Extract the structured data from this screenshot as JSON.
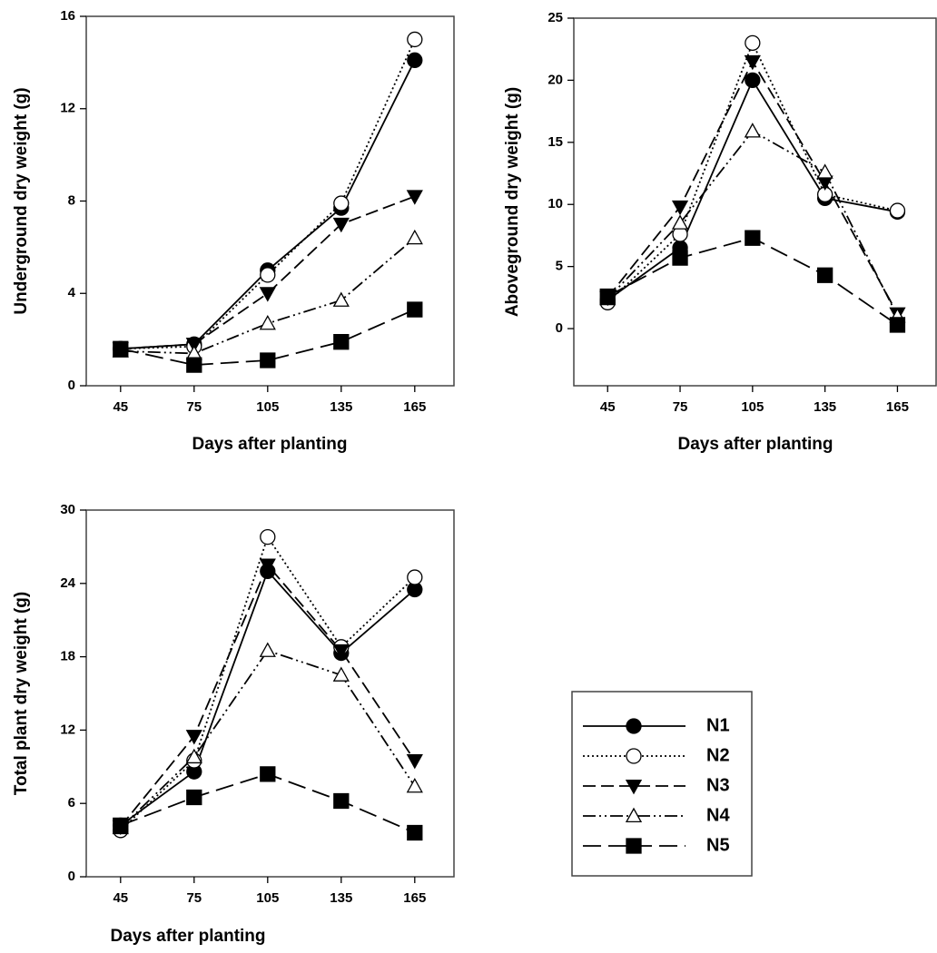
{
  "chart_data": [
    {
      "type": "line",
      "xlabel": "Days after planting",
      "ylabel": "Underground dry weight (g)",
      "x": [
        45,
        75,
        105,
        135,
        165
      ],
      "xlim": [
        31,
        181
      ],
      "xticks": [
        45,
        75,
        105,
        135,
        165
      ],
      "ylim": [
        0,
        16
      ],
      "yticks": [
        0,
        4,
        8,
        12,
        16
      ],
      "series": [
        {
          "name": "N1",
          "color": "#000000",
          "marker": "filled-circle",
          "dash": "solid",
          "values": [
            1.6,
            1.8,
            5.0,
            7.7,
            14.1
          ]
        },
        {
          "name": "N2",
          "color": "#000000",
          "marker": "open-circle",
          "dash": "dotted",
          "values": [
            1.6,
            1.7,
            4.8,
            7.9,
            15.0
          ]
        },
        {
          "name": "N3",
          "color": "#000000",
          "marker": "filled-triangle-down",
          "dash": "dashed",
          "values": [
            1.6,
            1.8,
            4.0,
            7.0,
            8.2
          ]
        },
        {
          "name": "N4",
          "color": "#000000",
          "marker": "open-triangle-up",
          "dash": "dash-dot-dot",
          "values": [
            1.5,
            1.4,
            2.7,
            3.7,
            6.4
          ]
        },
        {
          "name": "N5",
          "color": "#000000",
          "marker": "filled-square",
          "dash": "long-dash",
          "values": [
            1.6,
            0.9,
            1.1,
            1.9,
            3.3
          ]
        }
      ]
    },
    {
      "type": "line",
      "xlabel": "Days after planting",
      "ylabel": "Aboveground dry weight (g)",
      "x": [
        45,
        75,
        105,
        135,
        165
      ],
      "xlim": [
        31,
        181
      ],
      "xticks": [
        45,
        75,
        105,
        135,
        165
      ],
      "ylim": [
        -4.6,
        25
      ],
      "yticks": [
        0,
        5,
        10,
        15,
        20,
        25
      ],
      "series": [
        {
          "name": "N1",
          "color": "#000000",
          "marker": "filled-circle",
          "dash": "solid",
          "values": [
            2.3,
            6.5,
            20.0,
            10.5,
            9.4
          ]
        },
        {
          "name": "N2",
          "color": "#000000",
          "marker": "open-circle",
          "dash": "dotted",
          "values": [
            2.1,
            7.6,
            23.0,
            10.8,
            9.5
          ]
        },
        {
          "name": "N3",
          "color": "#000000",
          "marker": "filled-triangle-down",
          "dash": "dashed",
          "values": [
            2.5,
            9.8,
            21.5,
            11.8,
            1.2
          ]
        },
        {
          "name": "N4",
          "color": "#000000",
          "marker": "open-triangle-up",
          "dash": "dash-dot-dot",
          "values": [
            2.4,
            8.5,
            15.9,
            12.6,
            1.0
          ]
        },
        {
          "name": "N5",
          "color": "#000000",
          "marker": "filled-square",
          "dash": "long-dash",
          "values": [
            2.6,
            5.7,
            7.3,
            4.3,
            0.3
          ]
        }
      ]
    },
    {
      "type": "line",
      "xlabel": "Days after planting",
      "ylabel": "Total plant dry weight (g)",
      "x": [
        45,
        75,
        105,
        135,
        165
      ],
      "xlim": [
        31,
        181
      ],
      "xticks": [
        45,
        75,
        105,
        135,
        165
      ],
      "ylim": [
        0,
        30
      ],
      "yticks": [
        0,
        6,
        12,
        18,
        24,
        30
      ],
      "legend": "outside-right",
      "series": [
        {
          "name": "N1",
          "color": "#000000",
          "marker": "filled-circle",
          "dash": "solid",
          "values": [
            4.2,
            8.6,
            25.0,
            18.3,
            23.5
          ]
        },
        {
          "name": "N2",
          "color": "#000000",
          "marker": "open-circle",
          "dash": "dotted",
          "values": [
            3.8,
            9.5,
            27.8,
            18.8,
            24.5
          ]
        },
        {
          "name": "N3",
          "color": "#000000",
          "marker": "filled-triangle-down",
          "dash": "dashed",
          "values": [
            4.1,
            11.5,
            25.5,
            18.5,
            9.5
          ]
        },
        {
          "name": "N4",
          "color": "#000000",
          "marker": "open-triangle-up",
          "dash": "dash-dot-dot",
          "values": [
            4.0,
            9.8,
            18.5,
            16.5,
            7.4
          ]
        },
        {
          "name": "N5",
          "color": "#000000",
          "marker": "filled-square",
          "dash": "long-dash",
          "values": [
            4.2,
            6.5,
            8.4,
            6.2,
            3.6
          ]
        }
      ]
    }
  ]
}
